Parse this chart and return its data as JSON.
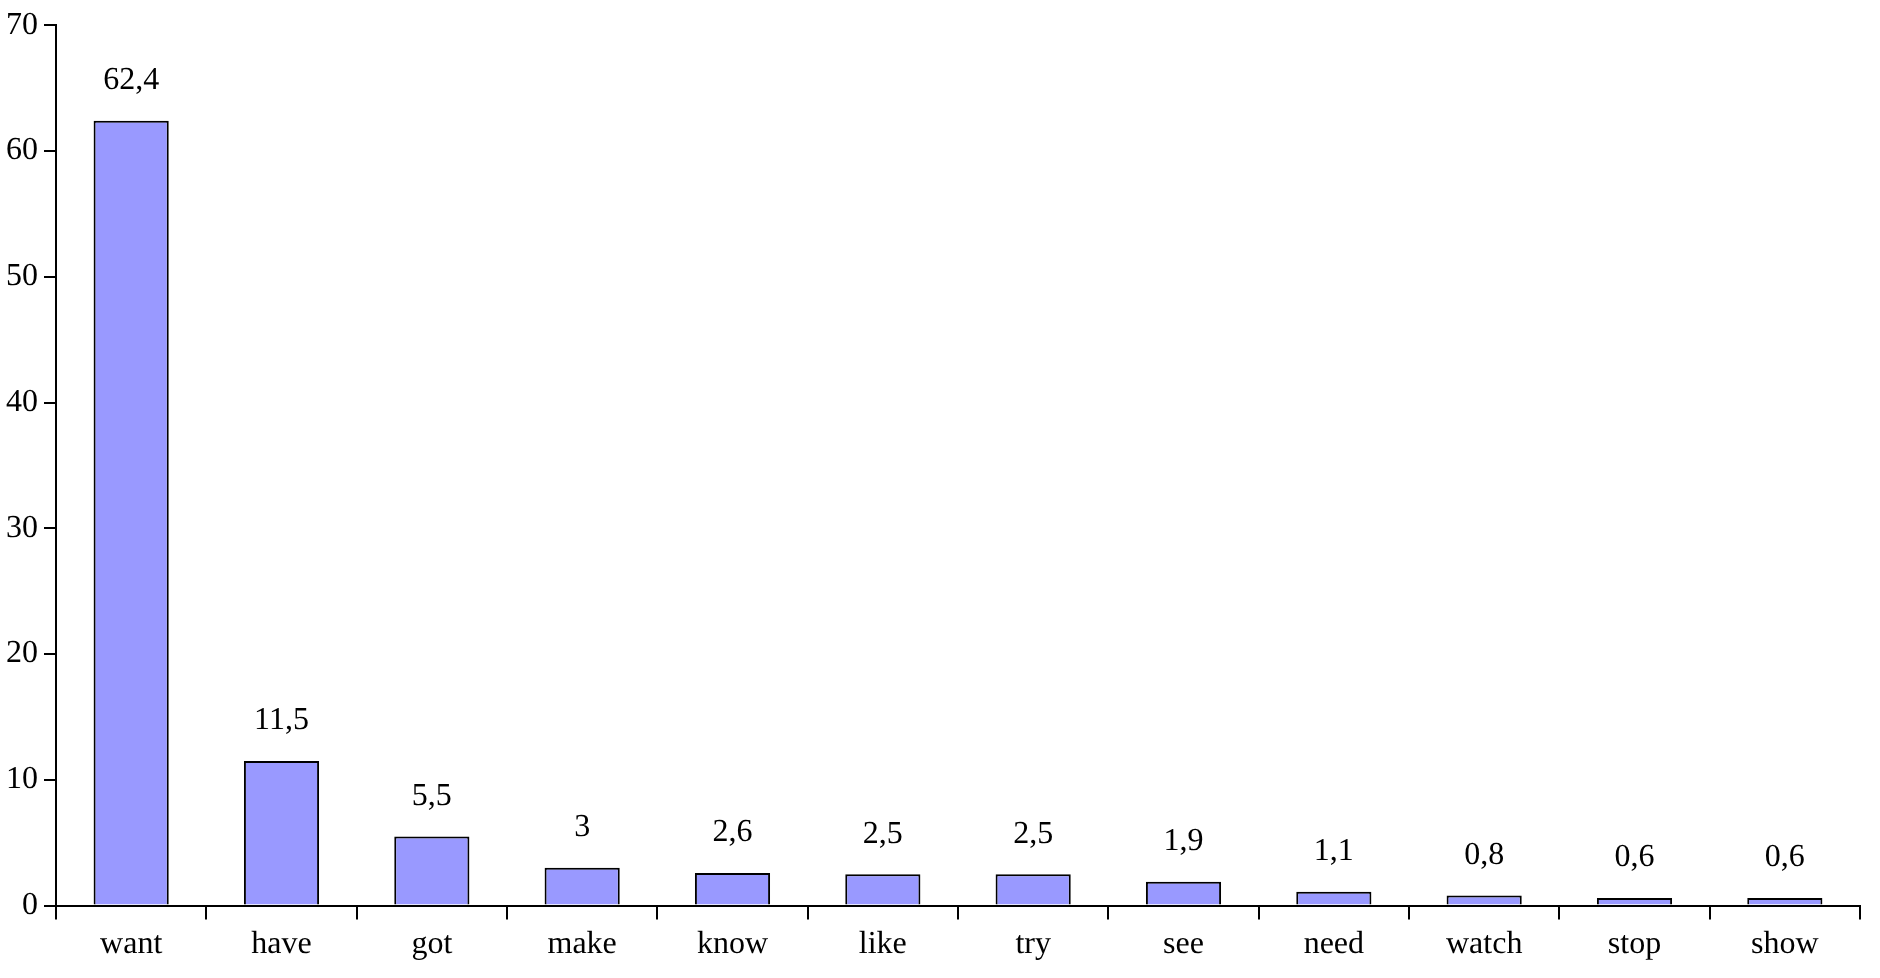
{
  "chart_data": {
    "type": "bar",
    "categories": [
      "want",
      "have",
      "got",
      "make",
      "know",
      "like",
      "try",
      "see",
      "need",
      "watch",
      "stop",
      "show"
    ],
    "values": [
      62.4,
      11.5,
      5.5,
      3,
      2.6,
      2.5,
      2.5,
      1.9,
      1.1,
      0.8,
      0.6,
      0.6
    ],
    "value_labels": [
      "62,4",
      "11,5",
      "5,5",
      "3",
      "2,6",
      "2,5",
      "2,5",
      "1,9",
      "1,1",
      "0,8",
      "0,6",
      "0,6"
    ],
    "color": "#9999ff",
    "ylim": [
      0,
      70
    ],
    "yticks": [
      0,
      10,
      20,
      30,
      40,
      50,
      60,
      70
    ],
    "grid": false,
    "legend": false
  }
}
